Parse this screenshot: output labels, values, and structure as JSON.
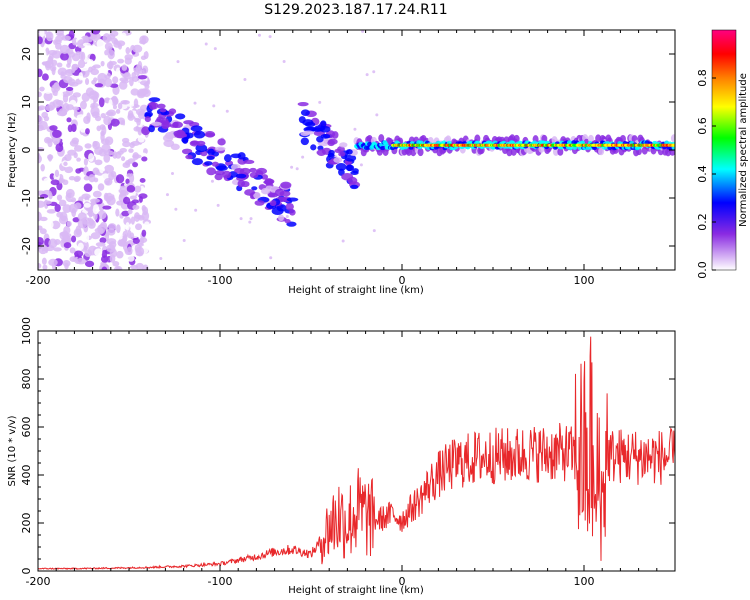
{
  "title": "S129.2023.187.17.24.R11",
  "chart_data": [
    {
      "type": "heatmap",
      "title": "S129.2023.187.17.24.R11",
      "xlabel": "Height of straight line (km)",
      "ylabel": "Frequency (Hz)",
      "xlim": [
        -200,
        150
      ],
      "ylim": [
        -25,
        25
      ],
      "x_ticks": [
        "-200",
        "-100",
        "0",
        "100"
      ],
      "y_ticks": [
        "20",
        "10",
        "0",
        "-10",
        "-20"
      ],
      "colorbar": {
        "label": "Normalized spectral amplitude",
        "range": [
          0,
          1
        ],
        "ticks": [
          "0.0",
          "0.2",
          "0.4",
          "0.6",
          "0.8"
        ],
        "colors": [
          "#ffffff",
          "#8a2be2",
          "#0000ff",
          "#00ffff",
          "#00ff00",
          "#ffff00",
          "#ff8000",
          "#ff0000",
          "#ff0080"
        ]
      },
      "features": [
        {
          "x_range": [
            -200,
            -140
          ],
          "freq_range": [
            -25,
            25
          ],
          "amplitude": 0.1
        },
        {
          "x_range": [
            -140,
            -60
          ],
          "freq_start": 8,
          "freq_end": -12,
          "amplitude": 0.3
        },
        {
          "x_range": [
            -55,
            -25
          ],
          "freq_start": 6,
          "freq_end": -5,
          "amplitude": 0.3
        },
        {
          "x_range": [
            -25,
            150
          ],
          "freq": 1,
          "amplitude": 0.8
        }
      ]
    },
    {
      "type": "line",
      "xlabel": "Height of straight line (km)",
      "ylabel": "SNR (10 * v/v)",
      "xlim": [
        -200,
        150
      ],
      "ylim": [
        0,
        1000
      ],
      "x_ticks": [
        "-200",
        "-100",
        "0",
        "100"
      ],
      "y_ticks": [
        "0",
        "200",
        "400",
        "600",
        "800",
        "1000"
      ],
      "line_color": "#e8282b",
      "series": [
        {
          "x": [
            -200,
            -180,
            -160,
            -140,
            -120,
            -100,
            -90,
            -80,
            -70,
            -60,
            -50,
            -45,
            -40,
            -35,
            -30,
            -25,
            -20,
            -15,
            -10,
            -5,
            0,
            5,
            10,
            15,
            20,
            25,
            30,
            40,
            50,
            60,
            70,
            80,
            90,
            95,
            100,
            102,
            104,
            106,
            108,
            110,
            112,
            115,
            120,
            130,
            140,
            150
          ],
          "values": [
            10,
            10,
            12,
            15,
            20,
            30,
            45,
            60,
            80,
            90,
            70,
            120,
            180,
            230,
            200,
            250,
            230,
            210,
            220,
            240,
            210,
            260,
            300,
            360,
            400,
            430,
            450,
            470,
            480,
            480,
            490,
            490,
            495,
            480,
            500,
            350,
            600,
            200,
            450,
            250,
            480,
            480,
            480,
            475,
            475,
            475
          ]
        }
      ]
    }
  ]
}
